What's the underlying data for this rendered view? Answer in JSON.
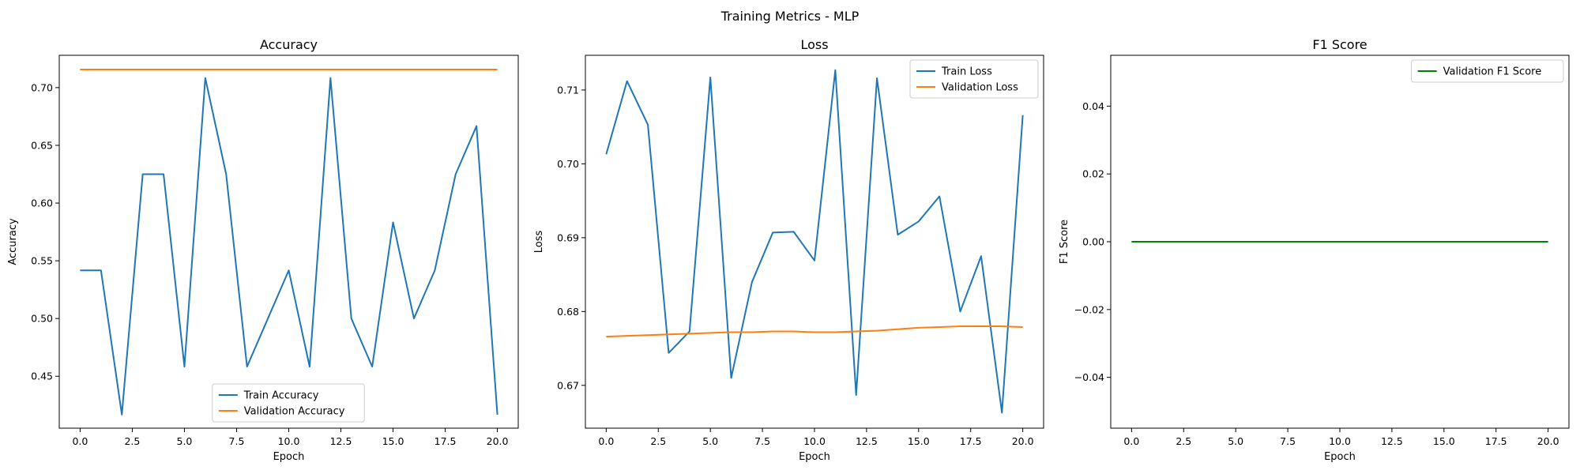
{
  "figure": {
    "suptitle": "Training Metrics - MLP"
  },
  "chart_data": [
    {
      "type": "line",
      "title": "Accuracy",
      "xlabel": "Epoch",
      "ylabel": "Accuracy",
      "xlim": [
        -1,
        21
      ],
      "ylim": [
        0.405,
        0.728
      ],
      "xticks": [
        0,
        2.5,
        5,
        7.5,
        10,
        12.5,
        15,
        17.5,
        20
      ],
      "xtick_labels": [
        "0.0",
        "2.5",
        "5.0",
        "7.5",
        "10.0",
        "12.5",
        "15.0",
        "17.5",
        "20.0"
      ],
      "yticks": [
        0.45,
        0.5,
        0.55,
        0.6,
        0.65,
        0.7
      ],
      "ytick_labels": [
        "0.45",
        "0.50",
        "0.55",
        "0.60",
        "0.65",
        "0.70"
      ],
      "x": [
        0,
        1,
        2,
        3,
        4,
        5,
        6,
        7,
        8,
        9,
        10,
        11,
        12,
        13,
        14,
        15,
        16,
        17,
        18,
        19,
        20
      ],
      "legend_position": "lower-center",
      "grid": false,
      "series": [
        {
          "name": "Train Accuracy",
          "color": "#1f77b4",
          "values": [
            0.5417,
            0.5417,
            0.4167,
            0.625,
            0.625,
            0.4583,
            0.7083,
            0.625,
            0.4583,
            0.5,
            0.5417,
            0.4583,
            0.7083,
            0.5,
            0.4583,
            0.5833,
            0.5,
            0.5417,
            0.625,
            0.6667,
            0.4167
          ]
        },
        {
          "name": "Validation Accuracy",
          "color": "#ff7f0e",
          "values": [
            0.7157,
            0.7157,
            0.7157,
            0.7157,
            0.7157,
            0.7157,
            0.7157,
            0.7157,
            0.7157,
            0.7157,
            0.7157,
            0.7157,
            0.7157,
            0.7157,
            0.7157,
            0.7157,
            0.7157,
            0.7157,
            0.7157,
            0.7157,
            0.7157
          ]
        }
      ]
    },
    {
      "type": "line",
      "title": "Loss",
      "xlabel": "Epoch",
      "ylabel": "Loss",
      "xlim": [
        -1,
        21
      ],
      "ylim": [
        0.6642,
        0.7147
      ],
      "xticks": [
        0,
        2.5,
        5,
        7.5,
        10,
        12.5,
        15,
        17.5,
        20
      ],
      "xtick_labels": [
        "0.0",
        "2.5",
        "5.0",
        "7.5",
        "10.0",
        "12.5",
        "15.0",
        "17.5",
        "20.0"
      ],
      "yticks": [
        0.67,
        0.68,
        0.69,
        0.7,
        0.71
      ],
      "ytick_labels": [
        "0.67",
        "0.68",
        "0.69",
        "0.70",
        "0.71"
      ],
      "x": [
        0,
        1,
        2,
        3,
        4,
        5,
        6,
        7,
        8,
        9,
        10,
        11,
        12,
        13,
        14,
        15,
        16,
        17,
        18,
        19,
        20
      ],
      "legend_position": "upper-right",
      "grid": false,
      "series": [
        {
          "name": "Train Loss",
          "color": "#1f77b4",
          "values": [
            0.7013,
            0.7112,
            0.7053,
            0.6744,
            0.6773,
            0.7117,
            0.671,
            0.684,
            0.6907,
            0.6908,
            0.6869,
            0.7127,
            0.6687,
            0.7116,
            0.6904,
            0.6922,
            0.6956,
            0.68,
            0.6875,
            0.6663,
            0.7066
          ]
        },
        {
          "name": "Validation Loss",
          "color": "#ff7f0e",
          "values": [
            0.6766,
            0.6767,
            0.6768,
            0.6769,
            0.677,
            0.6771,
            0.6772,
            0.6772,
            0.6773,
            0.6773,
            0.6772,
            0.6772,
            0.6773,
            0.6774,
            0.6776,
            0.6778,
            0.6779,
            0.678,
            0.678,
            0.678,
            0.6779
          ]
        }
      ]
    },
    {
      "type": "line",
      "title": "F1 Score",
      "xlabel": "Epoch",
      "ylabel": "F1 Score",
      "xlim": [
        -1,
        21
      ],
      "ylim": [
        -0.055,
        0.055
      ],
      "xticks": [
        0,
        2.5,
        5,
        7.5,
        10,
        12.5,
        15,
        17.5,
        20
      ],
      "xtick_labels": [
        "0.0",
        "2.5",
        "5.0",
        "7.5",
        "10.0",
        "12.5",
        "15.0",
        "17.5",
        "20.0"
      ],
      "yticks": [
        -0.04,
        -0.02,
        0.0,
        0.02,
        0.04
      ],
      "ytick_labels": [
        "−0.04",
        "−0.02",
        "0.00",
        "0.02",
        "0.04"
      ],
      "x": [
        0,
        1,
        2,
        3,
        4,
        5,
        6,
        7,
        8,
        9,
        10,
        11,
        12,
        13,
        14,
        15,
        16,
        17,
        18,
        19,
        20
      ],
      "legend_position": "upper-right",
      "grid": false,
      "series": [
        {
          "name": "Validation F1 Score",
          "color": "#008000",
          "values": [
            0,
            0,
            0,
            0,
            0,
            0,
            0,
            0,
            0,
            0,
            0,
            0,
            0,
            0,
            0,
            0,
            0,
            0,
            0,
            0,
            0
          ]
        }
      ]
    }
  ]
}
